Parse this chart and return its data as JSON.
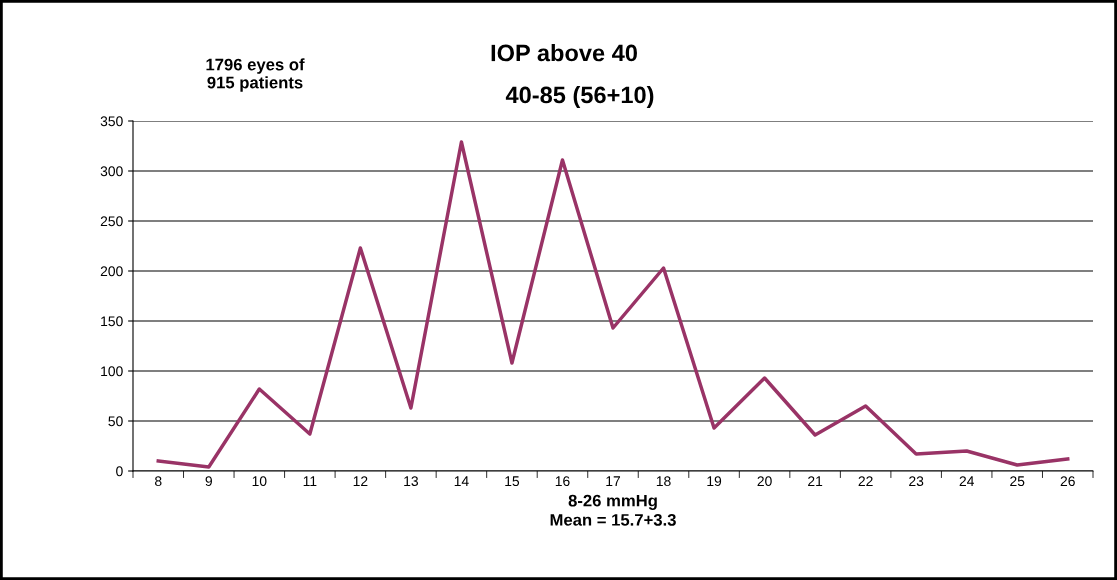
{
  "chart_data": {
    "type": "line",
    "title": "IOP above 40",
    "subtitle": "40-85 (56+10)",
    "xlabel": "8-26 mmHg\nMean = 15.7+3.3",
    "annotations": [
      "1796 eyes of\n915 patients"
    ],
    "categories": [
      "8",
      "9",
      "10",
      "11",
      "12",
      "13",
      "14",
      "15",
      "16",
      "17",
      "18",
      "19",
      "20",
      "21",
      "22",
      "23",
      "24",
      "25",
      "26"
    ],
    "series": [
      {
        "color": "#993366",
        "values": [
          10,
          4,
          82,
          37,
          223,
          63,
          329,
          108,
          311,
          143,
          203,
          43,
          93,
          36,
          65,
          17,
          20,
          6,
          12
        ]
      }
    ],
    "ylim": [
      0,
      350
    ],
    "yticks": [
      0,
      50,
      100,
      150,
      200,
      250,
      300,
      350
    ],
    "grid": "y",
    "marker": "none",
    "line_style": "solid"
  }
}
